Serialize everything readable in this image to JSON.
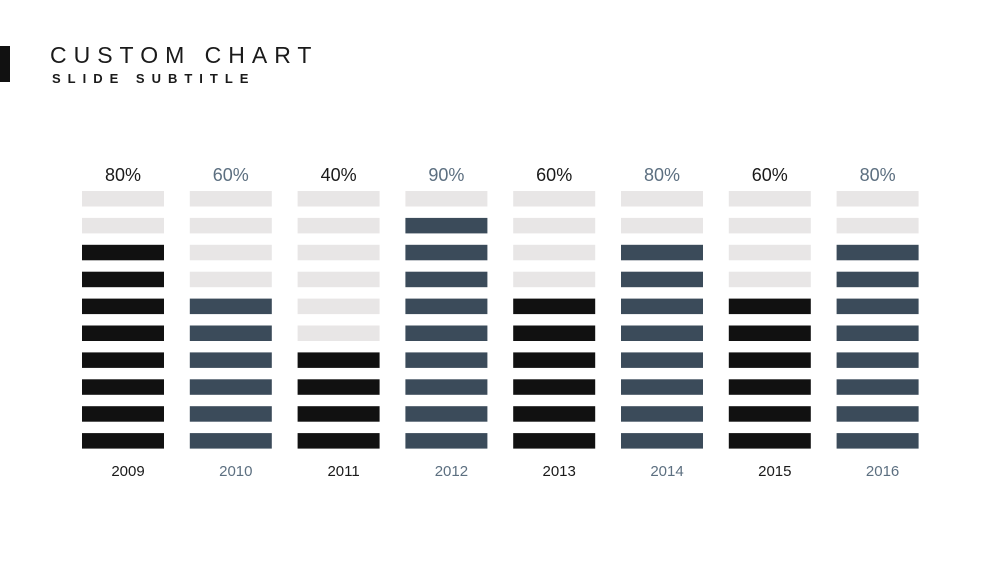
{
  "slide": {
    "title": "CUSTOM CHART",
    "subtitle": "SLIDE SUBTITLE"
  },
  "colors": {
    "dark": "#111111",
    "slate": "#3b4b5a",
    "empty": "#e8e6e6",
    "label_dark": "#1a1a1a",
    "label_slate": "#5c6f80"
  },
  "chart_data": {
    "type": "bar",
    "categories": [
      "2009",
      "2010",
      "2011",
      "2012",
      "2013",
      "2014",
      "2015",
      "2016"
    ],
    "values": [
      80,
      60,
      40,
      90,
      60,
      80,
      60,
      80
    ],
    "value_labels": [
      "80%",
      "60%",
      "40%",
      "90%",
      "60%",
      "80%",
      "60%",
      "80%"
    ],
    "segments_per_bar": 10,
    "ylim": [
      0,
      100
    ],
    "title": "",
    "xlabel": "",
    "ylabel": "",
    "grid": false,
    "legend": "none"
  }
}
